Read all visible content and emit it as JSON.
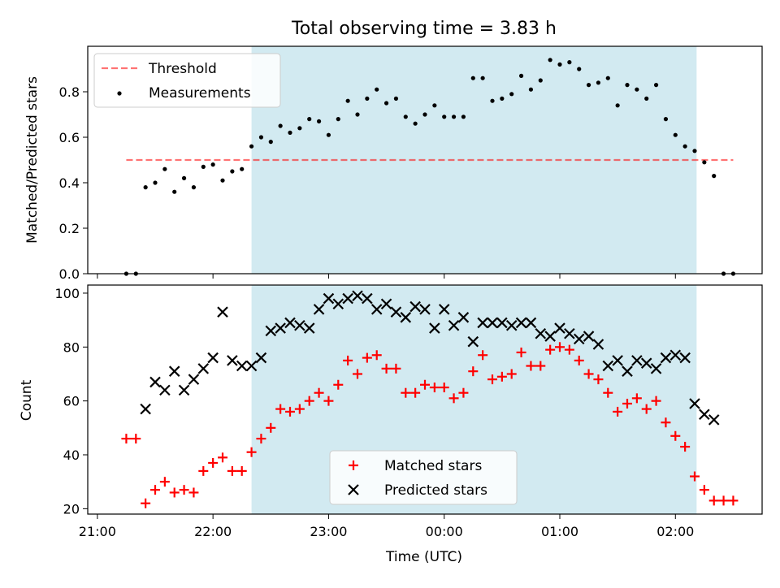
{
  "title": "Total observing time = 3.83 h",
  "colors": {
    "observing_window": "#add8e6",
    "threshold": "#ff0000",
    "measurements": "#000000",
    "matched": "#ff0000",
    "predicted": "#000000"
  },
  "chart_data": [
    {
      "type": "scatter",
      "ylabel": "Matched/Predicted stars",
      "ylim": [
        0.0,
        1.0
      ],
      "yticks": [
        "0.0",
        "0.2",
        "0.4",
        "0.6",
        "0.8"
      ],
      "legend": {
        "placement": "top-left",
        "entries": [
          "Threshold",
          "Measurements"
        ]
      },
      "threshold": {
        "name": "Threshold",
        "value": 0.5,
        "x_from": "21:15",
        "x_to": "02:30",
        "style": "dashed"
      },
      "shaded_region": {
        "x_from": "22:20",
        "x_to": "02:11"
      },
      "series": [
        {
          "name": "Measurements",
          "marker": "dot",
          "points": [
            [
              "21:15",
              0.0
            ],
            [
              "21:20",
              0.0
            ],
            [
              "21:25",
              0.38
            ],
            [
              "21:30",
              0.4
            ],
            [
              "21:35",
              0.46
            ],
            [
              "21:40",
              0.36
            ],
            [
              "21:45",
              0.42
            ],
            [
              "21:50",
              0.38
            ],
            [
              "21:55",
              0.47
            ],
            [
              "22:00",
              0.48
            ],
            [
              "22:05",
              0.41
            ],
            [
              "22:10",
              0.45
            ],
            [
              "22:15",
              0.46
            ],
            [
              "22:20",
              0.56
            ],
            [
              "22:25",
              0.6
            ],
            [
              "22:30",
              0.58
            ],
            [
              "22:35",
              0.65
            ],
            [
              "22:40",
              0.62
            ],
            [
              "22:45",
              0.64
            ],
            [
              "22:50",
              0.68
            ],
            [
              "22:55",
              0.67
            ],
            [
              "23:00",
              0.61
            ],
            [
              "23:05",
              0.68
            ],
            [
              "23:10",
              0.76
            ],
            [
              "23:15",
              0.7
            ],
            [
              "23:20",
              0.77
            ],
            [
              "23:25",
              0.81
            ],
            [
              "23:30",
              0.75
            ],
            [
              "23:35",
              0.77
            ],
            [
              "23:40",
              0.69
            ],
            [
              "23:45",
              0.66
            ],
            [
              "23:50",
              0.7
            ],
            [
              "23:55",
              0.74
            ],
            [
              "00:00",
              0.69
            ],
            [
              "00:05",
              0.69
            ],
            [
              "00:10",
              0.69
            ],
            [
              "00:15",
              0.86
            ],
            [
              "00:20",
              0.86
            ],
            [
              "00:25",
              0.76
            ],
            [
              "00:30",
              0.77
            ],
            [
              "00:35",
              0.79
            ],
            [
              "00:40",
              0.87
            ],
            [
              "00:45",
              0.81
            ],
            [
              "00:50",
              0.85
            ],
            [
              "00:55",
              0.94
            ],
            [
              "01:00",
              0.92
            ],
            [
              "01:05",
              0.93
            ],
            [
              "01:10",
              0.9
            ],
            [
              "01:15",
              0.83
            ],
            [
              "01:20",
              0.84
            ],
            [
              "01:25",
              0.86
            ],
            [
              "01:30",
              0.74
            ],
            [
              "01:35",
              0.83
            ],
            [
              "01:40",
              0.81
            ],
            [
              "01:45",
              0.77
            ],
            [
              "01:50",
              0.83
            ],
            [
              "01:55",
              0.68
            ],
            [
              "02:00",
              0.61
            ],
            [
              "02:05",
              0.56
            ],
            [
              "02:10",
              0.54
            ],
            [
              "02:15",
              0.49
            ],
            [
              "02:20",
              0.43
            ],
            [
              "02:25",
              0.0
            ],
            [
              "02:30",
              0.0
            ]
          ]
        }
      ]
    },
    {
      "type": "scatter",
      "xlabel": "Time (UTC)",
      "ylabel": "Count",
      "ylim": [
        18,
        103
      ],
      "yticks": [
        "20",
        "40",
        "60",
        "80",
        "100"
      ],
      "xticks": [
        "21:00",
        "22:00",
        "23:00",
        "00:00",
        "01:00",
        "02:00"
      ],
      "legend": {
        "placement": "bottom-center",
        "entries": [
          "Matched stars",
          "Predicted stars"
        ]
      },
      "shaded_region": {
        "x_from": "22:20",
        "x_to": "02:11"
      },
      "series": [
        {
          "name": "Matched stars",
          "marker": "plus",
          "points": [
            [
              "21:15",
              46
            ],
            [
              "21:20",
              46
            ],
            [
              "21:25",
              22
            ],
            [
              "21:30",
              27
            ],
            [
              "21:35",
              30
            ],
            [
              "21:40",
              26
            ],
            [
              "21:45",
              27
            ],
            [
              "21:50",
              26
            ],
            [
              "21:55",
              34
            ],
            [
              "22:00",
              37
            ],
            [
              "22:05",
              39
            ],
            [
              "22:10",
              34
            ],
            [
              "22:15",
              34
            ],
            [
              "22:20",
              41
            ],
            [
              "22:25",
              46
            ],
            [
              "22:30",
              50
            ],
            [
              "22:35",
              57
            ],
            [
              "22:40",
              56
            ],
            [
              "22:45",
              57
            ],
            [
              "22:50",
              60
            ],
            [
              "22:55",
              63
            ],
            [
              "23:00",
              60
            ],
            [
              "23:05",
              66
            ],
            [
              "23:10",
              75
            ],
            [
              "23:15",
              70
            ],
            [
              "23:20",
              76
            ],
            [
              "23:25",
              77
            ],
            [
              "23:30",
              72
            ],
            [
              "23:35",
              72
            ],
            [
              "23:40",
              63
            ],
            [
              "23:45",
              63
            ],
            [
              "23:50",
              66
            ],
            [
              "23:55",
              65
            ],
            [
              "00:00",
              65
            ],
            [
              "00:05",
              61
            ],
            [
              "00:10",
              63
            ],
            [
              "00:15",
              71
            ],
            [
              "00:20",
              77
            ],
            [
              "00:25",
              68
            ],
            [
              "00:30",
              69
            ],
            [
              "00:35",
              70
            ],
            [
              "00:40",
              78
            ],
            [
              "00:45",
              73
            ],
            [
              "00:50",
              73
            ],
            [
              "00:55",
              79
            ],
            [
              "01:00",
              80
            ],
            [
              "01:05",
              79
            ],
            [
              "01:10",
              75
            ],
            [
              "01:15",
              70
            ],
            [
              "01:20",
              68
            ],
            [
              "01:25",
              63
            ],
            [
              "01:30",
              56
            ],
            [
              "01:35",
              59
            ],
            [
              "01:40",
              61
            ],
            [
              "01:45",
              57
            ],
            [
              "01:50",
              60
            ],
            [
              "01:55",
              52
            ],
            [
              "02:00",
              47
            ],
            [
              "02:05",
              43
            ],
            [
              "02:10",
              32
            ],
            [
              "02:15",
              27
            ],
            [
              "02:20",
              23
            ],
            [
              "02:25",
              23
            ],
            [
              "02:30",
              23
            ]
          ]
        },
        {
          "name": "Predicted stars",
          "marker": "x",
          "points": [
            [
              "21:25",
              57
            ],
            [
              "21:30",
              67
            ],
            [
              "21:35",
              64
            ],
            [
              "21:40",
              71
            ],
            [
              "21:45",
              64
            ],
            [
              "21:50",
              68
            ],
            [
              "21:55",
              72
            ],
            [
              "22:00",
              76
            ],
            [
              "22:05",
              93
            ],
            [
              "22:10",
              75
            ],
            [
              "22:15",
              73
            ],
            [
              "22:20",
              73
            ],
            [
              "22:25",
              76
            ],
            [
              "22:30",
              86
            ],
            [
              "22:35",
              87
            ],
            [
              "22:40",
              89
            ],
            [
              "22:45",
              88
            ],
            [
              "22:50",
              87
            ],
            [
              "22:55",
              94
            ],
            [
              "23:00",
              98
            ],
            [
              "23:05",
              96
            ],
            [
              "23:10",
              98
            ],
            [
              "23:15",
              99
            ],
            [
              "23:20",
              98
            ],
            [
              "23:25",
              94
            ],
            [
              "23:30",
              96
            ],
            [
              "23:35",
              93
            ],
            [
              "23:40",
              91
            ],
            [
              "23:45",
              95
            ],
            [
              "23:50",
              94
            ],
            [
              "23:55",
              87
            ],
            [
              "00:00",
              94
            ],
            [
              "00:05",
              88
            ],
            [
              "00:10",
              91
            ],
            [
              "00:15",
              82
            ],
            [
              "00:20",
              89
            ],
            [
              "00:25",
              89
            ],
            [
              "00:30",
              89
            ],
            [
              "00:35",
              88
            ],
            [
              "00:40",
              89
            ],
            [
              "00:45",
              89
            ],
            [
              "00:50",
              85
            ],
            [
              "00:55",
              84
            ],
            [
              "01:00",
              87
            ],
            [
              "01:05",
              85
            ],
            [
              "01:10",
              83
            ],
            [
              "01:15",
              84
            ],
            [
              "01:20",
              81
            ],
            [
              "01:25",
              73
            ],
            [
              "01:30",
              75
            ],
            [
              "01:35",
              71
            ],
            [
              "01:40",
              75
            ],
            [
              "01:45",
              74
            ],
            [
              "01:50",
              72
            ],
            [
              "01:55",
              76
            ],
            [
              "02:00",
              77
            ],
            [
              "02:05",
              76
            ],
            [
              "02:10",
              59
            ],
            [
              "02:15",
              55
            ],
            [
              "02:20",
              53
            ]
          ]
        }
      ]
    }
  ]
}
